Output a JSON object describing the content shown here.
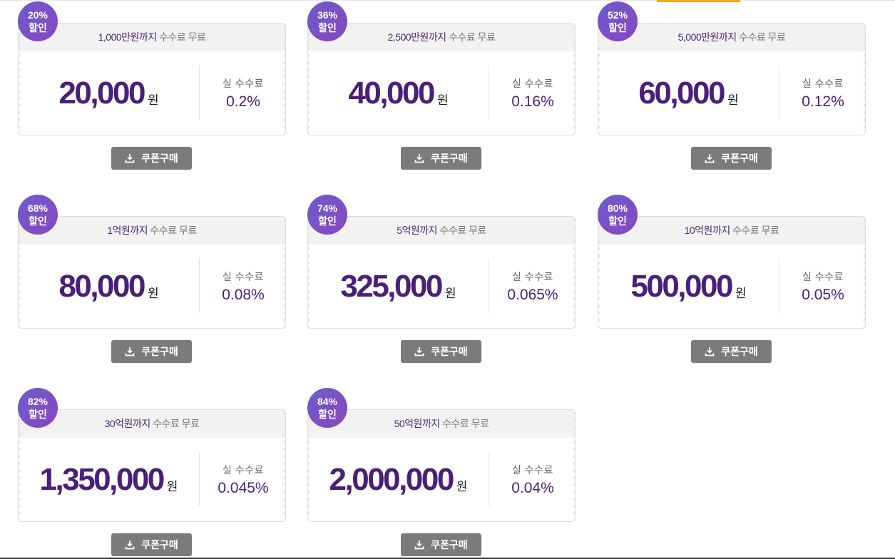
{
  "button_label": "쿠폰구매",
  "button_icon": "download-icon",
  "fee_label": "실 수수료",
  "won_unit": "원",
  "head_suffix": "수수료 무료",
  "coupons": [
    {
      "badge_pct": "20%",
      "badge_label": "할인",
      "limit": "1,000만원까지",
      "price": "20,000",
      "fee": "0.2%"
    },
    {
      "badge_pct": "36%",
      "badge_label": "할인",
      "limit": "2,500만원까지",
      "price": "40,000",
      "fee": "0.16%"
    },
    {
      "badge_pct": "52%",
      "badge_label": "할인",
      "limit": "5,000만원까지",
      "price": "60,000",
      "fee": "0.12%"
    },
    {
      "badge_pct": "68%",
      "badge_label": "할인",
      "limit": "1억원까지",
      "price": "80,000",
      "fee": "0.08%"
    },
    {
      "badge_pct": "74%",
      "badge_label": "할인",
      "limit": "5억원까지",
      "price": "325,000",
      "fee": "0.065%"
    },
    {
      "badge_pct": "80%",
      "badge_label": "할인",
      "limit": "10억원까지",
      "price": "500,000",
      "fee": "0.05%"
    },
    {
      "badge_pct": "82%",
      "badge_label": "할인",
      "limit": "30억원까지",
      "price": "1,350,000",
      "fee": "0.045%"
    },
    {
      "badge_pct": "84%",
      "badge_label": "할인",
      "limit": "50억원까지",
      "price": "2,000,000",
      "fee": "0.04%"
    }
  ],
  "colors": {
    "accent": "#4a1f78",
    "badge_start": "#6c5ccc",
    "badge_end": "#8a46bf",
    "button": "#7b7b7b",
    "top_accent": "#f5a623"
  }
}
